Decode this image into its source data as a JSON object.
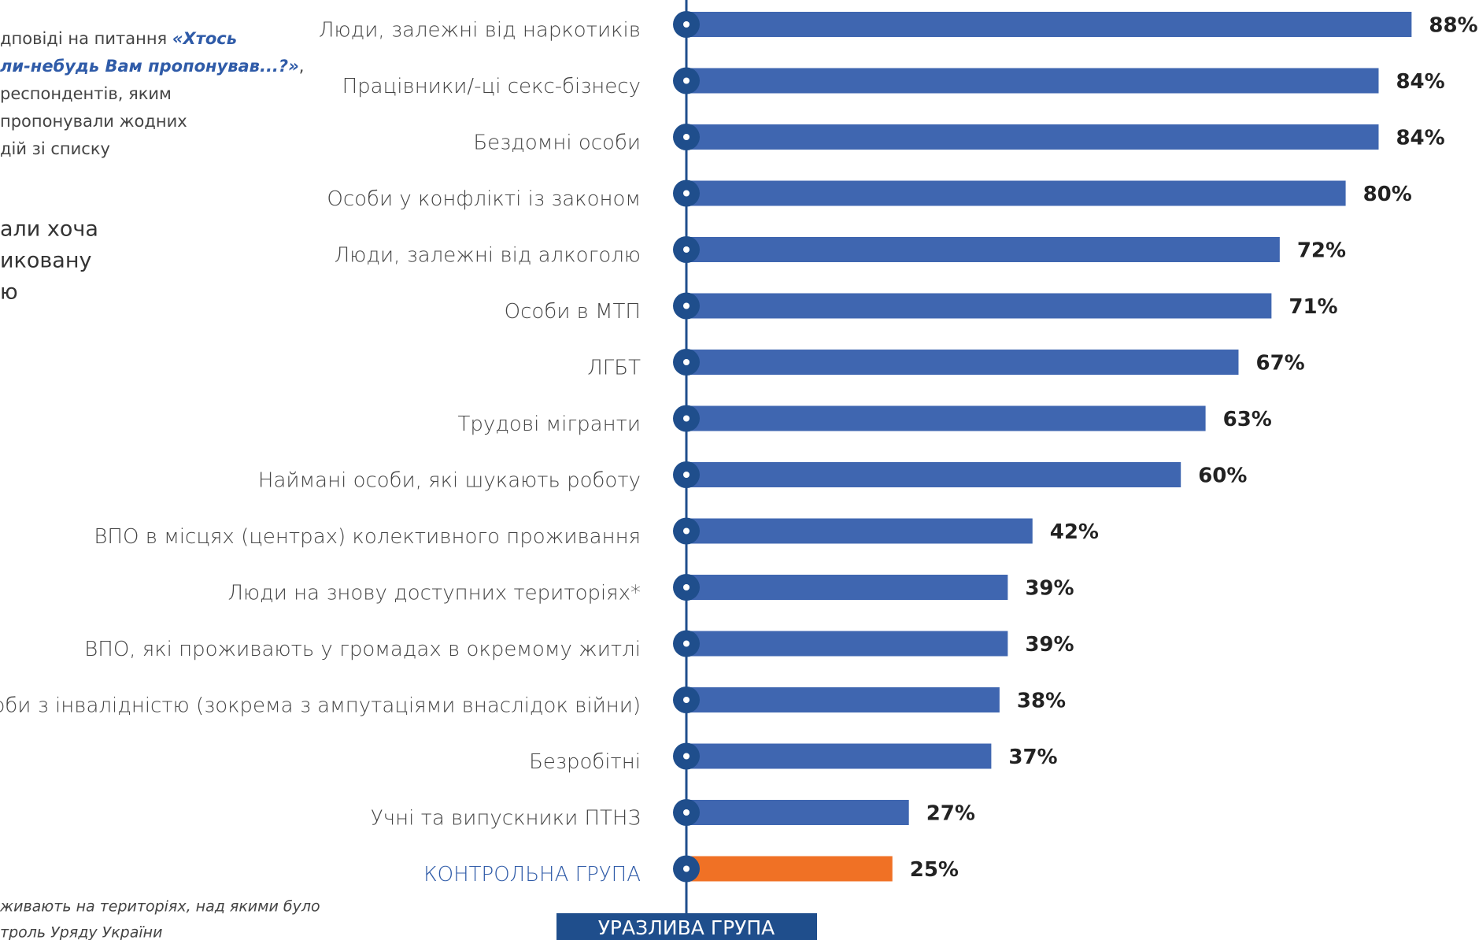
{
  "chart_data": {
    "type": "bar",
    "categories": [
      "Люди, залежні від наркотиків",
      "Працівники/-ці секс-бізнесу",
      "Бездомні особи",
      "Особи у конфлікті із законом",
      "Люди, залежні від алкоголю",
      "Особи в МТП",
      "ЛГБТ",
      "Трудові мігранти",
      "Наймані особи, які шукають роботу",
      "ВПО в місцях (центрах) колективного проживання",
      "Люди на знову доступних територіях*",
      "ВПО, які проживають у громадах в окремому житлі",
      "Особи з інвалідністю (зокрема з ампутаціями внаслідок війни)",
      "Безробітні",
      "Учні та випускники ПТНЗ",
      "КОНТРОЛЬНА ГРУПА"
    ],
    "values": [
      88,
      84,
      84,
      80,
      72,
      71,
      67,
      63,
      60,
      42,
      39,
      39,
      38,
      37,
      27,
      25
    ],
    "value_labels": [
      "88%",
      "84%",
      "84%",
      "80%",
      "72%",
      "71%",
      "67%",
      "63%",
      "60%",
      "42%",
      "39%",
      "39%",
      "38%",
      "37%",
      "27%",
      "25%"
    ],
    "colors": [
      "#3f66b0",
      "#3f66b0",
      "#3f66b0",
      "#3f66b0",
      "#3f66b0",
      "#3f66b0",
      "#3f66b0",
      "#3f66b0",
      "#3f66b0",
      "#3f66b0",
      "#3f66b0",
      "#3f66b0",
      "#3f66b0",
      "#3f66b0",
      "#3f66b0",
      "#f07125"
    ],
    "label_colors": [
      "#444444",
      "#444444",
      "#444444",
      "#444444",
      "#444444",
      "#444444",
      "#444444",
      "#444444",
      "#444444",
      "#444444",
      "#444444",
      "#444444",
      "#444444",
      "#444444",
      "#444444",
      "#2f5ba8"
    ],
    "xlim": [
      0,
      100
    ],
    "axis_label": "УРАЗЛИВА ГРУПА"
  },
  "notes": {
    "question": [
      [
        {
          "text": "дповіді на питання ",
          "style": "normal"
        },
        {
          "text": "«Хтось",
          "style": "emph"
        }
      ],
      [
        {
          "text": "ли-небудь Вам пропонував...?»",
          "style": "emph"
        },
        {
          "text": ",",
          "style": "normal"
        }
      ],
      [
        {
          "text": "респондентів, яким",
          "style": "normal"
        }
      ],
      [
        {
          "text": " пропонували жодних",
          "style": "normal"
        }
      ],
      [
        {
          "text": "дій зі списку",
          "style": "normal"
        }
      ]
    ],
    "summary": [
      "али хоча",
      "иковану",
      "ю"
    ],
    "footnote": [
      "живають на територіях, над якими було",
      "троль Уряду України"
    ]
  }
}
